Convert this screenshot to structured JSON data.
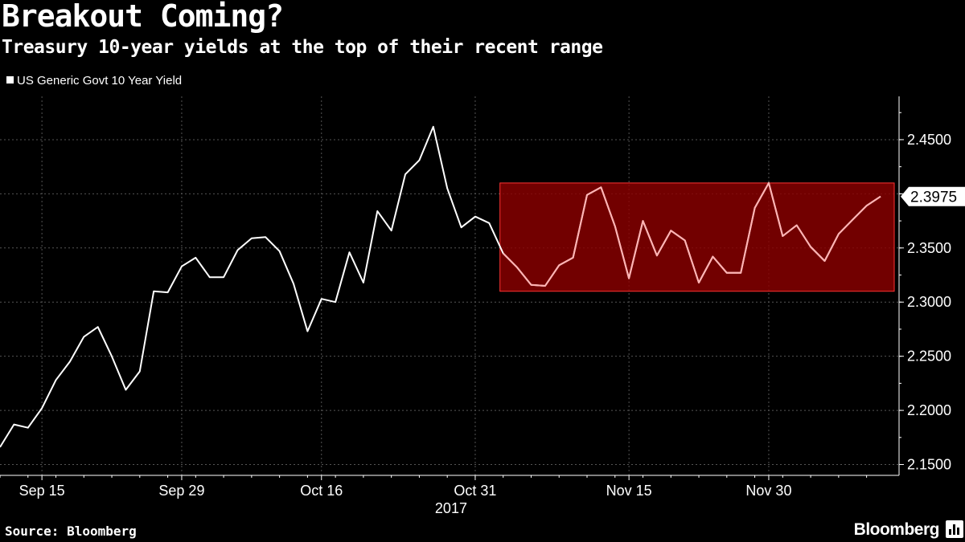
{
  "header": {
    "title": "Breakout Coming?",
    "subtitle": "Treasury 10-year yields at the top of their recent range"
  },
  "legend": {
    "label": "US Generic Govt 10 Year Yield"
  },
  "footer": {
    "source": "Source: Bloomberg",
    "brand": "Bloomberg"
  },
  "colors": {
    "background": "#000000",
    "line": "#ffffff",
    "highlight": "#8b0000",
    "grid": "#555555"
  },
  "chart_data": {
    "type": "line",
    "title": "Breakout Coming?",
    "subtitle": "Treasury 10-year yields at the top of their recent range",
    "xlabel": "",
    "ylabel": "",
    "ylim": [
      2.14,
      2.49
    ],
    "grid": true,
    "legend_position": "top-left",
    "x_ticks": [
      {
        "label": "Sep 15",
        "index": 3
      },
      {
        "label": "Sep 29",
        "index": 13
      },
      {
        "label": "Oct 16",
        "index": 23
      },
      {
        "label": "Oct 31",
        "index": 34
      },
      {
        "label": "Nov 15",
        "index": 45
      },
      {
        "label": "Nov 30",
        "index": 55
      }
    ],
    "x_year_label": "2017",
    "y_ticks": [
      "2.1500",
      "2.2000",
      "2.2500",
      "2.3000",
      "2.3500",
      "2.4000",
      "2.4500"
    ],
    "last_value_label": "2.3975",
    "highlight_band": {
      "label": "recent range",
      "y_min": 2.31,
      "y_max": 2.41,
      "from_index": 36
    },
    "series": [
      {
        "name": "US Generic Govt 10 Year Yield",
        "values": [
          2.166,
          2.187,
          2.184,
          2.202,
          2.228,
          2.245,
          2.268,
          2.277,
          2.25,
          2.219,
          2.236,
          2.31,
          2.309,
          2.333,
          2.341,
          2.323,
          2.323,
          2.348,
          2.359,
          2.36,
          2.347,
          2.317,
          2.273,
          2.303,
          2.3,
          2.346,
          2.318,
          2.384,
          2.366,
          2.418,
          2.431,
          2.462,
          2.405,
          2.369,
          2.379,
          2.373,
          2.345,
          2.332,
          2.316,
          2.315,
          2.334,
          2.341,
          2.399,
          2.406,
          2.37,
          2.322,
          2.375,
          2.343,
          2.366,
          2.357,
          2.318,
          2.342,
          2.327,
          2.327,
          2.387,
          2.41,
          2.361,
          2.371,
          2.351,
          2.338,
          2.363,
          2.376,
          2.389,
          2.3975
        ]
      }
    ]
  }
}
